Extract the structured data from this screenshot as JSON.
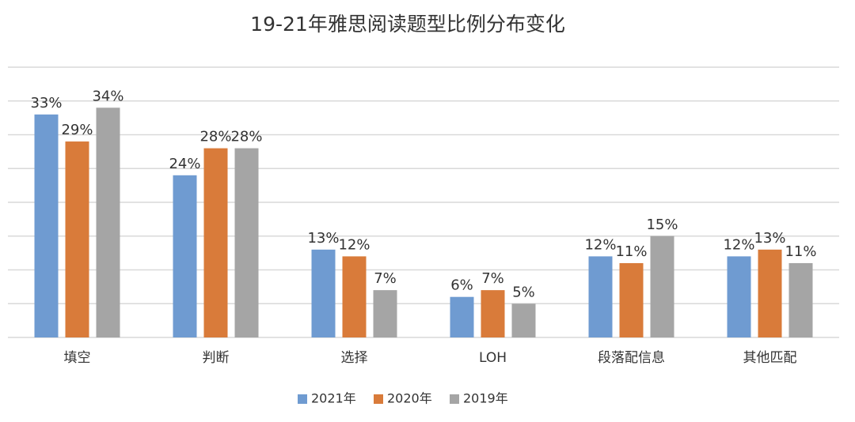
{
  "chart_data": {
    "type": "bar",
    "title": "19-21年雅思阅读题型比例分布变化",
    "categories": [
      "填空",
      "判断",
      "选择",
      "LOH",
      "段落配信息",
      "其他匹配"
    ],
    "series": [
      {
        "name": "2021年",
        "color": "#6f9bd1",
        "values": [
          33,
          24,
          13,
          6,
          12,
          12
        ],
        "value_labels": [
          "33%",
          "24%",
          "13%",
          "6%",
          "12%",
          "12%"
        ]
      },
      {
        "name": "2020年",
        "color": "#d97b3a",
        "values": [
          29,
          28,
          12,
          7,
          11,
          13
        ],
        "value_labels": [
          "29%",
          "28%",
          "12%",
          "7%",
          "11%",
          "13%"
        ]
      },
      {
        "name": "2019年",
        "color": "#a5a5a5",
        "values": [
          34,
          28,
          7,
          5,
          15,
          11
        ],
        "value_labels": [
          "34%",
          "28%",
          "7%",
          "5%",
          "15%",
          "11%"
        ]
      }
    ],
    "ylim": [
      0,
      40
    ],
    "yticks": [
      0,
      5,
      10,
      15,
      20,
      25,
      30,
      35,
      40
    ],
    "grid": true,
    "legend": "bottom"
  }
}
